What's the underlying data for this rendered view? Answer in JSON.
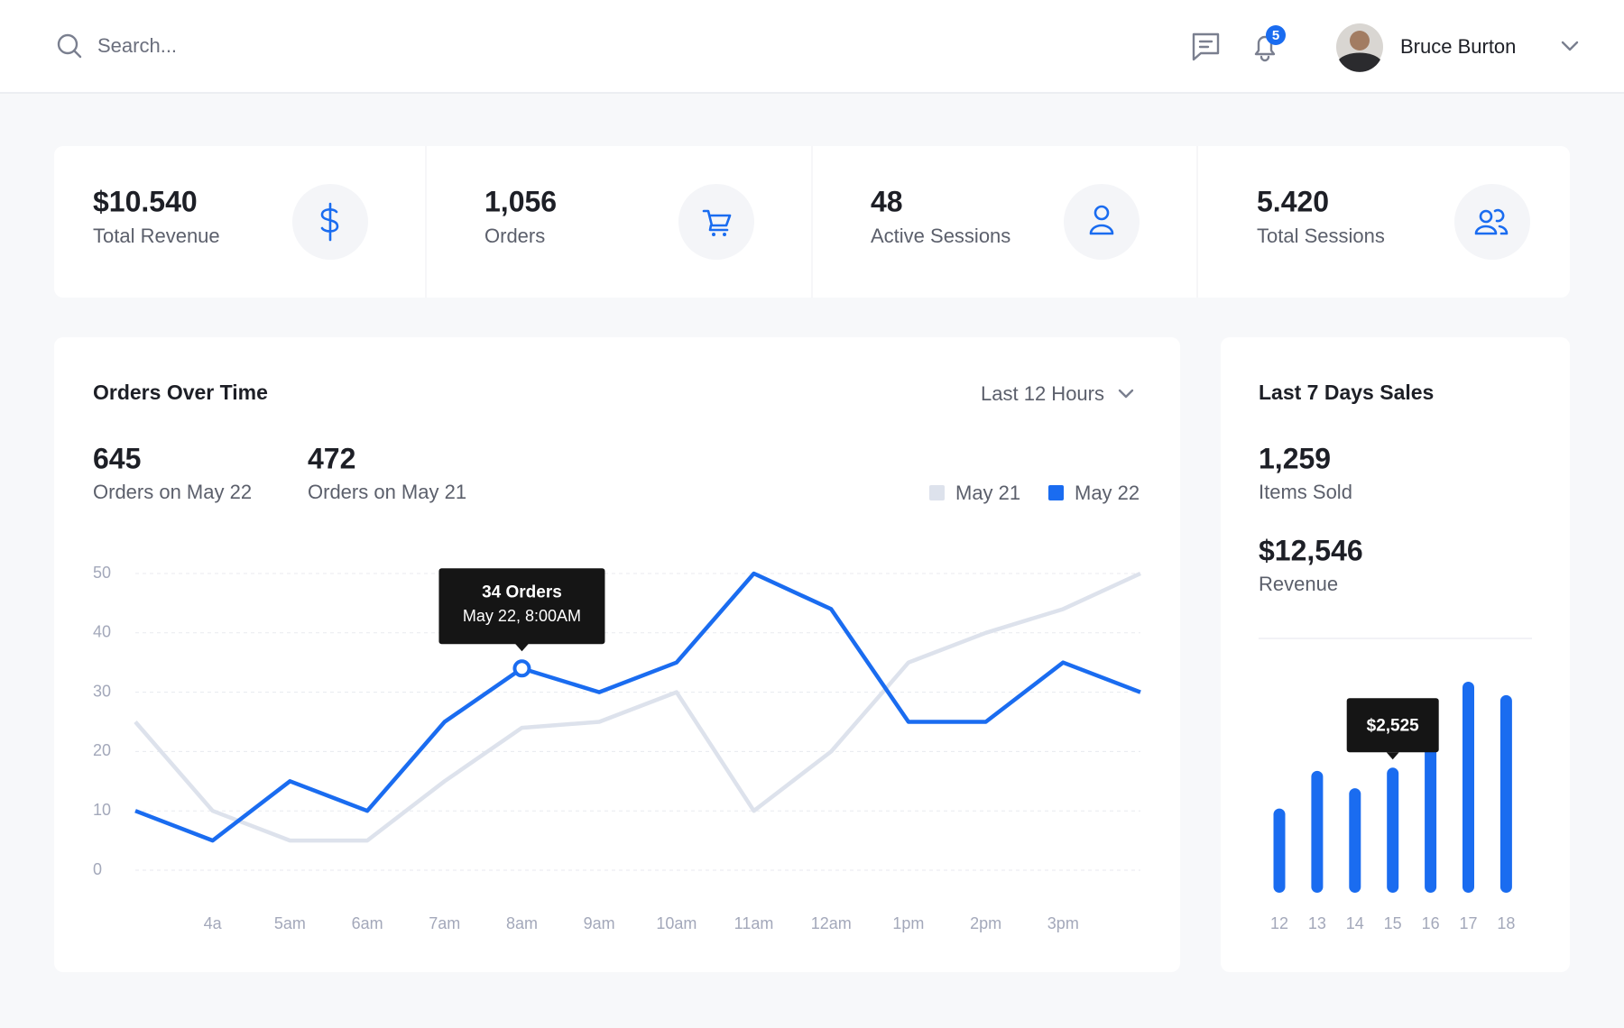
{
  "header": {
    "search_placeholder": "Search...",
    "notification_count": "5",
    "user_name": "Bruce Burton"
  },
  "stats": [
    {
      "value": "$10.540",
      "label": "Total Revenue"
    },
    {
      "value": "1,056",
      "label": "Orders"
    },
    {
      "value": "48",
      "label": "Active Sessions"
    },
    {
      "value": "5.420",
      "label": "Total Sessions"
    }
  ],
  "orders_chart": {
    "type": "line",
    "title": "Orders Over Time",
    "range_selector": "Last 12 Hours",
    "summary": [
      {
        "value": "645",
        "label": "Orders on May 22"
      },
      {
        "value": "472",
        "label": "Orders on May 21"
      }
    ],
    "categories": [
      null,
      "4a",
      "5am",
      "6am",
      "7am",
      "8am",
      "9am",
      "10am",
      "11am",
      "12am",
      "1pm",
      "2pm",
      "3pm",
      null
    ],
    "ylim": [
      0,
      50
    ],
    "yticks": [
      0,
      10,
      20,
      30,
      40,
      50
    ],
    "grid": true,
    "series": [
      {
        "name": "May 21",
        "color": "#dde2ec",
        "values": [
          25,
          10,
          5,
          5,
          15,
          24,
          25,
          30,
          10,
          20,
          35,
          40,
          44,
          50
        ]
      },
      {
        "name": "May 22",
        "color": "#1a6cf0",
        "values": [
          10,
          5,
          15,
          10,
          25,
          34,
          30,
          35,
          50,
          44,
          25,
          25,
          35,
          30
        ]
      }
    ],
    "tooltip": {
      "title": "34 Orders",
      "subtitle": "May 22, 8:00AM"
    }
  },
  "sales_chart": {
    "type": "bar",
    "title": "Last 7 Days Sales",
    "summary": [
      {
        "value": "1,259",
        "label": "Items Sold"
      },
      {
        "value": "$12,546",
        "label": "Revenue"
      }
    ],
    "categories": [
      "12",
      "13",
      "14",
      "15",
      "16",
      "17",
      "18"
    ],
    "color": "#1a6cf0",
    "values": [
      1700,
      2460,
      2110,
      2525,
      3340,
      4260,
      3990
    ],
    "tooltip": {
      "label": "$2,525"
    }
  }
}
